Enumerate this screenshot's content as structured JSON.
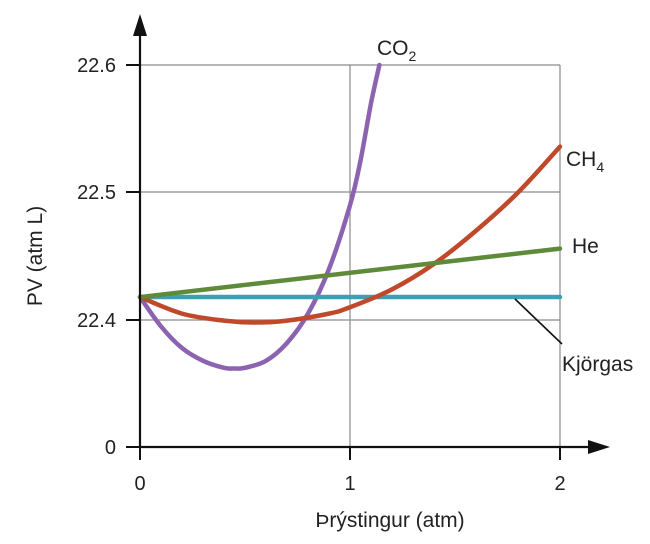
{
  "chart_data": {
    "type": "line",
    "xlabel": "Þrýstingur (atm)",
    "ylabel": "PV (atm L)",
    "x_ticks": [
      {
        "value": 0,
        "label": "0"
      },
      {
        "value": 1,
        "label": "1"
      },
      {
        "value": 2,
        "label": "2"
      }
    ],
    "y_ticks": [
      {
        "value": 0,
        "label": "0"
      },
      {
        "value": 22.4,
        "label": "22.4"
      },
      {
        "value": 22.5,
        "label": "22.5"
      },
      {
        "value": 22.6,
        "label": "22.6"
      }
    ],
    "axis_break": {
      "between": [
        0,
        22.4
      ],
      "note": "y-axis is broken; 0 shown below 22.4"
    },
    "xlim": [
      0,
      2
    ],
    "ylim_displayed": [
      22.4,
      22.6
    ],
    "grid": true,
    "series": [
      {
        "name": "CO",
        "name_sub": "2",
        "color": "#8b63b0",
        "x": [
          0,
          0.1,
          0.2,
          0.3,
          0.4,
          0.45,
          0.5,
          0.6,
          0.7,
          0.8,
          0.9,
          1.0,
          1.05,
          1.1,
          1.14
        ],
        "y": [
          22.418,
          22.395,
          22.378,
          22.368,
          22.3625,
          22.362,
          22.3625,
          22.368,
          22.382,
          22.405,
          22.44,
          22.49,
          22.525,
          22.57,
          22.6
        ]
      },
      {
        "name": "CH",
        "name_sub": "4",
        "color": "#c0492b",
        "x": [
          0,
          0.2,
          0.4,
          0.55,
          0.7,
          0.9,
          1.0,
          1.2,
          1.4,
          1.6,
          1.8,
          2.0
        ],
        "y": [
          22.418,
          22.405,
          22.3995,
          22.398,
          22.3995,
          22.405,
          22.41,
          22.424,
          22.444,
          22.47,
          22.5,
          22.536
        ]
      },
      {
        "name": "He",
        "name_sub": "",
        "color": "#5e8a3a",
        "x": [
          0,
          2
        ],
        "y": [
          22.418,
          22.456
        ]
      },
      {
        "name": "Kjörgas",
        "name_sub": "",
        "color": "#3aa1b2",
        "x": [
          0,
          2
        ],
        "y": [
          22.418,
          22.418
        ]
      }
    ]
  }
}
